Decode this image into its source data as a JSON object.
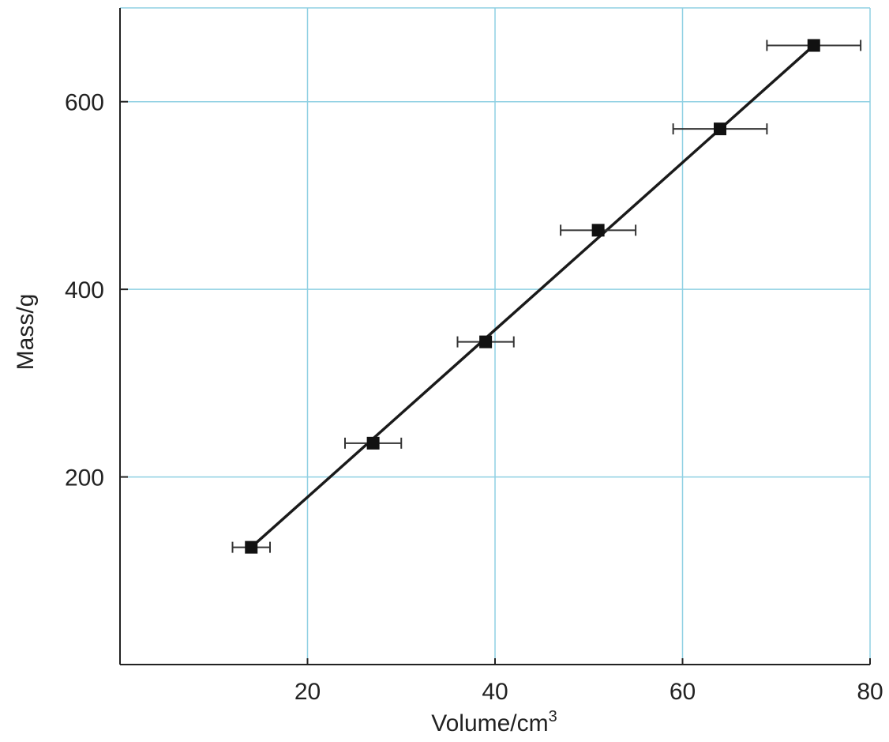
{
  "chart_data": {
    "type": "scatter",
    "title": "",
    "xlabel": "Volume/cm",
    "xlabel_superscript": "3",
    "ylabel": "Mass/g",
    "xlim": [
      0,
      80
    ],
    "ylim": [
      0,
      700
    ],
    "xticks": [
      20,
      40,
      60,
      80
    ],
    "yticks": [
      200,
      400,
      600
    ],
    "grid": true,
    "legend": "none",
    "points": [
      {
        "x": 14,
        "y": 125,
        "xerr": 2
      },
      {
        "x": 27,
        "y": 236,
        "xerr": 3
      },
      {
        "x": 39,
        "y": 344,
        "xerr": 3
      },
      {
        "x": 51,
        "y": 463,
        "xerr": 4
      },
      {
        "x": 64,
        "y": 571,
        "xerr": 5
      },
      {
        "x": 74,
        "y": 660,
        "xerr": 5
      }
    ],
    "best_fit_line": {
      "x": [
        14,
        74
      ],
      "y": [
        125,
        660
      ]
    },
    "colors": {
      "grid": "#8fd0e3",
      "axis": "#222222",
      "markers": "#111111",
      "line": "#1a1a1a"
    }
  }
}
